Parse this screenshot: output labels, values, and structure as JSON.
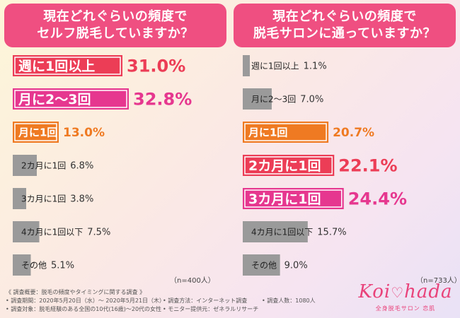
{
  "left": {
    "title_line1": "現在どれぐらいの頻度で",
    "title_line2": "セルフ脱毛していますか？",
    "n_label": "（n=400人）"
  },
  "right": {
    "title_line1": "現在どれぐらいの頻度で",
    "title_line2": "脱毛サロンに通っていますか？",
    "n_label": "（n=733人）"
  },
  "colors": {
    "red": "#ec3d56",
    "magenta": "#e6378f",
    "orange": "#ef7a22",
    "gray": "#9a9a9a",
    "title_bg": "#ef4f81"
  },
  "chart_data": [
    {
      "type": "bar",
      "title": "現在どれぐらいの頻度でセルフ脱毛していますか？",
      "categories": [
        "週に1回以上",
        "月に2〜3回",
        "月に1回",
        "2カ月に1回",
        "3カ月に1回",
        "4カ月に1回以下",
        "その他"
      ],
      "values": [
        31.0,
        32.8,
        13.0,
        6.8,
        3.8,
        7.5,
        5.1
      ],
      "value_labels": [
        "31.0%",
        "32.8%",
        "13.0%",
        "6.8%",
        "3.8%",
        "7.5%",
        "5.1%"
      ],
      "highlight": [
        "red",
        "magenta",
        "orange",
        "gray",
        "gray",
        "gray",
        "gray"
      ],
      "n": "（n=400人）"
    },
    {
      "type": "bar",
      "title": "現在どれぐらいの頻度で脱毛サロンに通っていますか？",
      "categories": [
        "週に1回以上",
        "月に2〜3回",
        "月に1回",
        "2カ月に1回",
        "3カ月に1回",
        "4カ月に1回以下",
        "その他"
      ],
      "values": [
        1.1,
        7.0,
        20.7,
        22.1,
        24.4,
        15.7,
        9.0
      ],
      "value_labels": [
        "1.1%",
        "7.0%",
        "20.7%",
        "22.1%",
        "24.4%",
        "15.7%",
        "9.0%"
      ],
      "highlight": [
        "gray",
        "gray",
        "orange",
        "red",
        "magenta",
        "gray",
        "gray"
      ],
      "n": "（n=733人）"
    }
  ],
  "footer": {
    "heading": "《 調査概要：脱毛の頻度やタイミングに関する調査 》",
    "period": "• 調査期間：2020年5月20日（水）〜 2020年5月21日（木）",
    "method": "• 調査方法：インターネット調査",
    "count": "• 調査人数：1080人",
    "target": "• 調査対象：脱毛経験のある全国の10代(16歳)〜20代の女性",
    "monitor": "• モニター提供元：ゼネラルリサーチ"
  },
  "logo": {
    "text_a": "Koi",
    "text_b": "hada",
    "sub": "全身脱毛サロン 恋肌"
  }
}
